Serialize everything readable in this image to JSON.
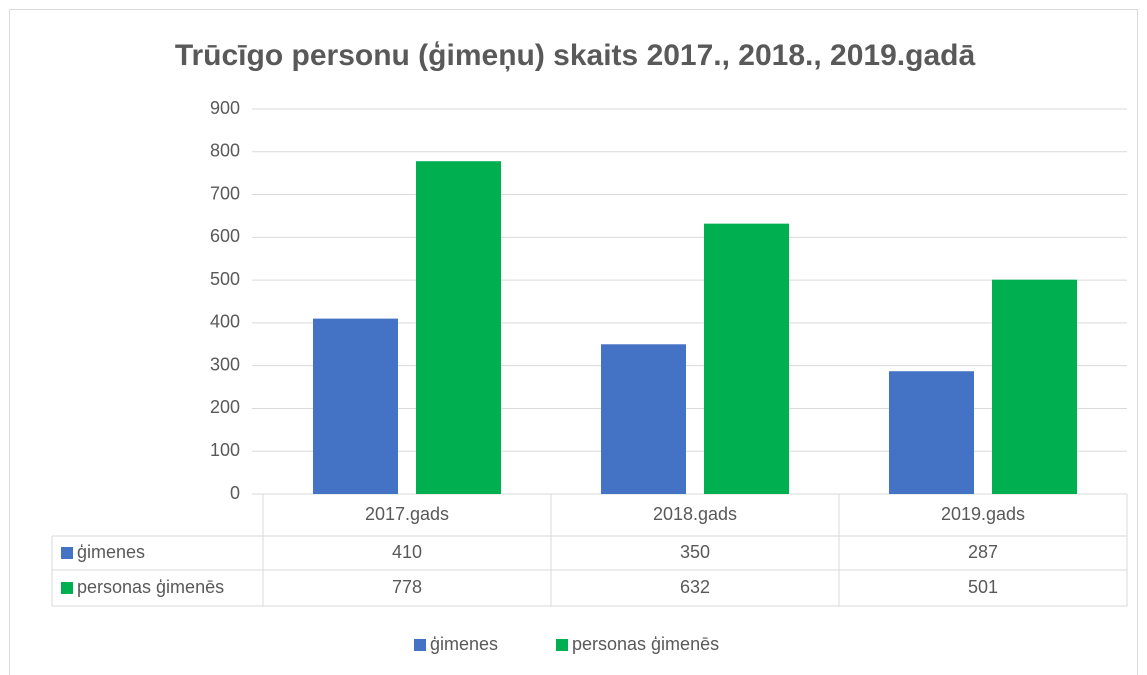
{
  "chart_data": {
    "type": "bar",
    "title": "Trūcīgo personu (ģimeņu) skaits 2017., 2018., 2019.gadā",
    "categories": [
      "2017.gads",
      "2018.gads",
      "2019.gads"
    ],
    "series": [
      {
        "name": "ģimenes",
        "color": "#4472c4",
        "values": [
          410,
          350,
          287
        ]
      },
      {
        "name": "personas ģimenēs",
        "color": "#00b050",
        "values": [
          778,
          632,
          501
        ]
      }
    ],
    "ylim": [
      0,
      900
    ],
    "yticks": [
      0,
      100,
      200,
      300,
      400,
      500,
      600,
      700,
      800,
      900
    ],
    "grid": true,
    "legend": "bottom",
    "data_table": true
  }
}
